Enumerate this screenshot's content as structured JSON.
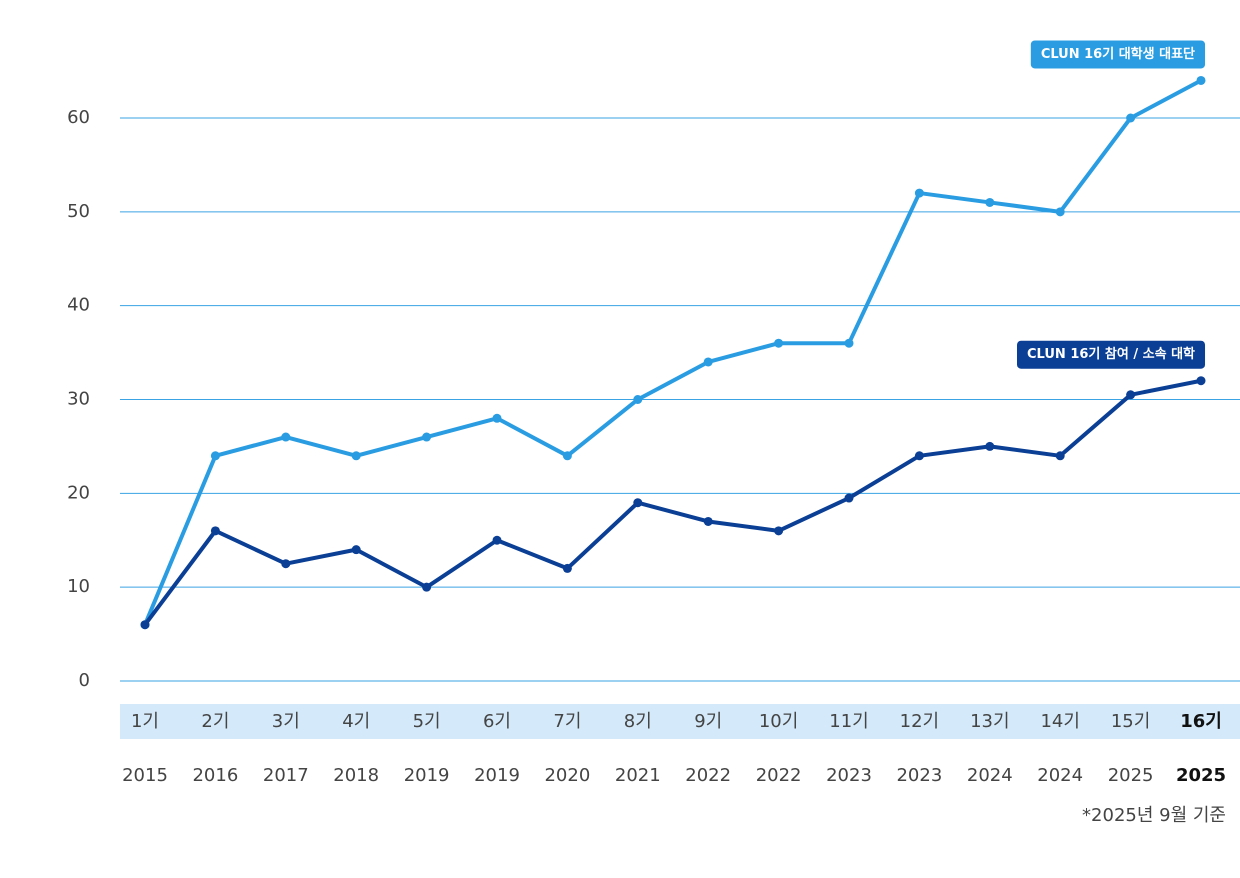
{
  "chart_data": {
    "type": "line",
    "categories": [
      "1기",
      "2기",
      "3기",
      "4기",
      "5기",
      "6기",
      "7기",
      "8기",
      "9기",
      "10기",
      "11기",
      "12기",
      "13기",
      "14기",
      "15기",
      "16기"
    ],
    "years": [
      "2015",
      "2016",
      "2017",
      "2018",
      "2019",
      "2019",
      "2020",
      "2021",
      "2022",
      "2022",
      "2023",
      "2023",
      "2024",
      "2024",
      "2025",
      "2025"
    ],
    "series": [
      {
        "name": "CLUN 16기 대학생 대표단",
        "color": "#2a9de2",
        "values": [
          6,
          24,
          26,
          24,
          26,
          28,
          24,
          30,
          34,
          36,
          36,
          52,
          51,
          50,
          60,
          64
        ]
      },
      {
        "name": "CLUN 16기 참여 / 소속 대학",
        "color": "#0a3f95",
        "values": [
          6,
          16,
          12.5,
          14,
          10,
          15,
          12,
          19,
          17,
          16,
          19.5,
          24,
          25,
          24,
          30.5,
          32
        ]
      }
    ],
    "ylim": [
      0,
      70
    ],
    "yticks": [
      0,
      10,
      20,
      30,
      40,
      50,
      60
    ],
    "grid": true,
    "footnote": "*2025년 9월 기준"
  }
}
